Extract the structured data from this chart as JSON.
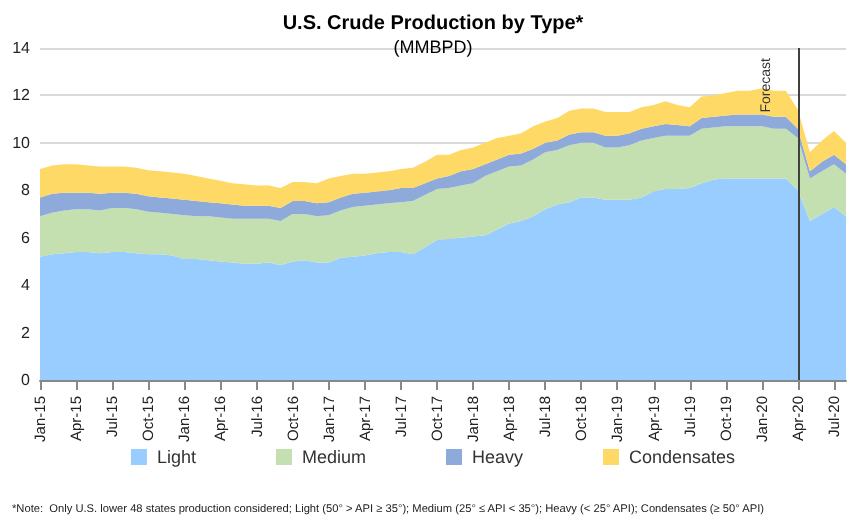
{
  "chart_data": {
    "type": "area",
    "stacked": true,
    "title": "U.S. Crude Production by Type*",
    "subtitle": "(MMBPD)",
    "categories": [
      "Jan-15",
      null,
      null,
      "Apr-15",
      null,
      null,
      "Jul-15",
      null,
      null,
      "Oct-15",
      null,
      null,
      "Jan-16",
      null,
      null,
      "Apr-16",
      null,
      null,
      "Jul-16",
      null,
      null,
      "Oct-16",
      null,
      null,
      "Jan-17",
      null,
      null,
      "Apr-17",
      null,
      null,
      "Jul-17",
      null,
      null,
      "Oct-17",
      null,
      null,
      "Jan-18",
      null,
      null,
      "Apr-18",
      null,
      null,
      "Jul-18",
      null,
      null,
      "Oct-18",
      null,
      null,
      "Jan-19",
      null,
      null,
      "Apr-19",
      null,
      null,
      "Jul-19",
      null,
      null,
      "Oct-19",
      null,
      null,
      "Jan-20",
      null,
      null,
      "Apr-20",
      null,
      null,
      "Jul-20",
      null
    ],
    "series": [
      {
        "name": "Light",
        "color": "#99ccff",
        "values": [
          5.2,
          5.3,
          5.35,
          5.4,
          5.4,
          5.35,
          5.4,
          5.4,
          5.35,
          5.3,
          5.3,
          5.25,
          5.1,
          5.1,
          5.05,
          5.0,
          4.95,
          4.9,
          4.9,
          4.95,
          4.85,
          5.0,
          5.05,
          4.95,
          4.95,
          5.15,
          5.2,
          5.25,
          5.35,
          5.4,
          5.4,
          5.3,
          5.6,
          5.9,
          5.95,
          6.0,
          6.05,
          6.1,
          6.35,
          6.6,
          6.7,
          6.9,
          7.2,
          7.4,
          7.5,
          7.7,
          7.7,
          7.6,
          7.6,
          7.6,
          7.7,
          7.95,
          8.05,
          8.05,
          8.1,
          8.3,
          8.45,
          8.5,
          8.5,
          8.5,
          8.5,
          8.5,
          8.5,
          8.0,
          6.7,
          7.0,
          7.3,
          6.9
        ]
      },
      {
        "name": "Medium",
        "color": "#c4dfb0",
        "values": [
          1.7,
          1.75,
          1.8,
          1.8,
          1.8,
          1.8,
          1.85,
          1.85,
          1.85,
          1.8,
          1.75,
          1.75,
          1.85,
          1.8,
          1.85,
          1.85,
          1.85,
          1.9,
          1.9,
          1.85,
          1.85,
          2.0,
          1.95,
          1.95,
          2.0,
          2.0,
          2.1,
          2.1,
          2.05,
          2.05,
          2.1,
          2.25,
          2.2,
          2.15,
          2.15,
          2.2,
          2.25,
          2.5,
          2.45,
          2.4,
          2.35,
          2.4,
          2.4,
          2.3,
          2.4,
          2.3,
          2.3,
          2.2,
          2.2,
          2.3,
          2.4,
          2.25,
          2.25,
          2.25,
          2.2,
          2.3,
          2.2,
          2.2,
          2.2,
          2.2,
          2.2,
          2.1,
          2.1,
          2.2,
          1.8,
          1.8,
          1.8,
          1.8
        ]
      },
      {
        "name": "Heavy",
        "color": "#8eaadb",
        "values": [
          0.8,
          0.8,
          0.75,
          0.7,
          0.7,
          0.7,
          0.65,
          0.65,
          0.65,
          0.65,
          0.65,
          0.65,
          0.65,
          0.65,
          0.6,
          0.6,
          0.6,
          0.55,
          0.55,
          0.55,
          0.55,
          0.55,
          0.55,
          0.55,
          0.55,
          0.55,
          0.55,
          0.55,
          0.55,
          0.55,
          0.6,
          0.55,
          0.5,
          0.45,
          0.5,
          0.6,
          0.6,
          0.5,
          0.5,
          0.5,
          0.5,
          0.45,
          0.4,
          0.4,
          0.45,
          0.45,
          0.45,
          0.5,
          0.5,
          0.5,
          0.5,
          0.5,
          0.5,
          0.45,
          0.4,
          0.45,
          0.45,
          0.45,
          0.5,
          0.5,
          0.5,
          0.5,
          0.5,
          0.4,
          0.3,
          0.4,
          0.4,
          0.4
        ]
      },
      {
        "name": "Condensates",
        "color": "#ffd966",
        "values": [
          1.2,
          1.2,
          1.2,
          1.2,
          1.15,
          1.15,
          1.1,
          1.1,
          1.1,
          1.1,
          1.1,
          1.1,
          1.1,
          1.05,
          1.0,
          0.95,
          0.9,
          0.9,
          0.85,
          0.85,
          0.85,
          0.8,
          0.8,
          0.85,
          1.0,
          0.9,
          0.85,
          0.8,
          0.8,
          0.8,
          0.8,
          0.85,
          0.9,
          1.0,
          0.9,
          0.9,
          0.9,
          0.9,
          0.9,
          0.8,
          0.85,
          0.95,
          0.9,
          0.95,
          1.0,
          1.0,
          1.0,
          1.0,
          1.0,
          0.9,
          0.9,
          0.9,
          0.95,
          0.85,
          0.8,
          0.9,
          0.9,
          0.95,
          1.0,
          1.0,
          1.1,
          1.1,
          1.1,
          0.8,
          0.8,
          0.9,
          1.0,
          0.9
        ]
      }
    ],
    "ylim": [
      0,
      14
    ],
    "yticks": [
      0,
      2,
      4,
      6,
      8,
      10,
      12,
      14
    ],
    "grid": "y",
    "legend": "bottom",
    "ref_lines": [
      {
        "axis": "x",
        "value": "Apr-20",
        "label": "Forecast",
        "color": "#404040"
      }
    ],
    "annotations": [
      "*Note:  Only U.S. lower 48 states production considered; Light (50° > API ≥ 35°); Medium (25° ≤ API < 35°); Heavy (< 25° API); Condensates (≥ 50° API)"
    ]
  }
}
